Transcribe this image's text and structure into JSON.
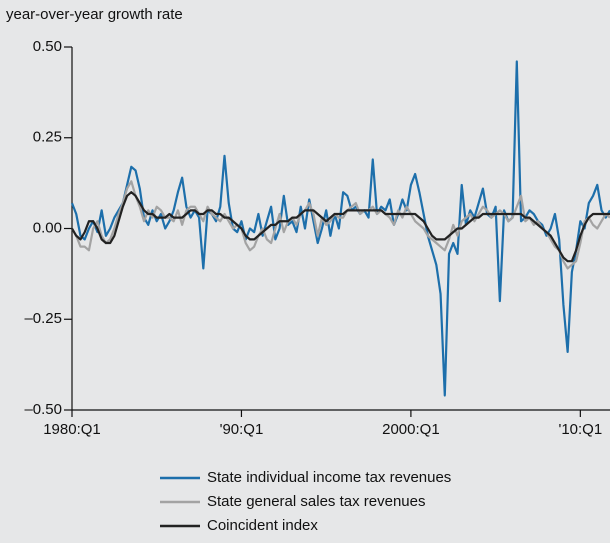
{
  "chart_data": {
    "type": "line",
    "y_axis_label": "year-over-year growth rate",
    "x": [
      1980,
      1980.25,
      1980.5,
      1980.75,
      1981,
      1981.25,
      1981.5,
      1981.75,
      1982,
      1982.25,
      1982.5,
      1982.75,
      1983,
      1983.25,
      1983.5,
      1983.75,
      1984,
      1984.25,
      1984.5,
      1984.75,
      1985,
      1985.25,
      1985.5,
      1985.75,
      1986,
      1986.25,
      1986.5,
      1986.75,
      1987,
      1987.25,
      1987.5,
      1987.75,
      1988,
      1988.25,
      1988.5,
      1988.75,
      1989,
      1989.25,
      1989.5,
      1989.75,
      1990,
      1990.25,
      1990.5,
      1990.75,
      1991,
      1991.25,
      1991.5,
      1991.75,
      1992,
      1992.25,
      1992.5,
      1992.75,
      1993,
      1993.25,
      1993.5,
      1993.75,
      1994,
      1994.25,
      1994.5,
      1994.75,
      1995,
      1995.25,
      1995.5,
      1995.75,
      1996,
      1996.25,
      1996.5,
      1996.75,
      1997,
      1997.25,
      1997.5,
      1997.75,
      1998,
      1998.25,
      1998.5,
      1998.75,
      1999,
      1999.25,
      1999.5,
      1999.75,
      2000,
      2000.25,
      2000.5,
      2000.75,
      2001,
      2001.25,
      2001.5,
      2001.75,
      2002,
      2002.25,
      2002.5,
      2002.75,
      2003,
      2003.25,
      2003.5,
      2003.75,
      2004,
      2004.25,
      2004.5,
      2004.75,
      2005,
      2005.25,
      2005.5,
      2005.75,
      2006,
      2006.25,
      2006.5,
      2006.75,
      2007,
      2007.25,
      2007.5,
      2007.75,
      2008,
      2008.25,
      2008.5,
      2008.75,
      2009,
      2009.25,
      2009.5,
      2009.75,
      2010,
      2010.25,
      2010.5,
      2010.75,
      2011,
      2011.25,
      2011.5,
      2011.75
    ],
    "xlim": [
      1980,
      2011.75
    ],
    "xticks": [
      {
        "value": 1980,
        "label": "1980:Q1"
      },
      {
        "value": 1990,
        "label": "'90:Q1"
      },
      {
        "value": 2000,
        "label": "2000:Q1"
      },
      {
        "value": 2010,
        "label": "'10:Q1"
      }
    ],
    "ylim": [
      -0.5,
      0.5
    ],
    "yticks": [
      {
        "value": 0.5,
        "label": "0.50"
      },
      0.25,
      {
        "value": 0,
        "label": "0.00"
      },
      {
        "value": -0.25,
        "label": "–0.25"
      },
      {
        "value": -0.5,
        "label": "–0.50"
      }
    ],
    "series": [
      {
        "name": "State individual income tax revenues",
        "color": "#1d6fab",
        "values": [
          0.07,
          0.04,
          -0.02,
          -0.03,
          0.0,
          0.02,
          -0.01,
          0.05,
          -0.02,
          0.0,
          0.03,
          0.05,
          0.07,
          0.12,
          0.17,
          0.16,
          0.11,
          0.03,
          0.01,
          0.05,
          0.02,
          0.04,
          0.0,
          0.02,
          0.05,
          0.1,
          0.14,
          0.06,
          0.03,
          0.05,
          0.03,
          -0.11,
          0.05,
          0.04,
          0.02,
          0.06,
          0.2,
          0.07,
          0.0,
          -0.01,
          0.02,
          -0.03,
          0.0,
          -0.01,
          0.04,
          -0.02,
          0.02,
          0.06,
          -0.03,
          0.0,
          0.09,
          0.01,
          0.02,
          -0.01,
          0.06,
          0.0,
          0.08,
          0.02,
          -0.04,
          0.0,
          0.05,
          -0.02,
          0.04,
          0.0,
          0.1,
          0.09,
          0.05,
          0.06,
          0.04,
          0.05,
          0.03,
          0.19,
          0.04,
          0.06,
          0.05,
          0.08,
          0.01,
          0.04,
          0.08,
          0.05,
          0.12,
          0.15,
          0.1,
          0.04,
          -0.02,
          -0.06,
          -0.1,
          -0.18,
          -0.46,
          -0.07,
          -0.04,
          -0.07,
          0.12,
          0.01,
          0.05,
          0.03,
          0.07,
          0.11,
          0.04,
          0.03,
          0.06,
          -0.2,
          0.05,
          0.02,
          0.03,
          0.46,
          0.02,
          0.03,
          0.05,
          0.04,
          0.02,
          0.01,
          -0.02,
          0.0,
          0.04,
          -0.03,
          -0.21,
          -0.34,
          -0.12,
          -0.06,
          0.02,
          0.0,
          0.07,
          0.09,
          0.12,
          0.05,
          0.03,
          0.05
        ]
      },
      {
        "name": "State general sales tax revenues",
        "color": "#a3a3a3",
        "values": [
          0.0,
          -0.02,
          -0.05,
          -0.05,
          -0.06,
          0.0,
          0.02,
          -0.02,
          -0.04,
          -0.03,
          0.0,
          0.04,
          0.07,
          0.11,
          0.13,
          0.09,
          0.06,
          0.02,
          0.05,
          0.03,
          0.06,
          0.05,
          0.03,
          0.03,
          0.02,
          0.05,
          0.01,
          0.05,
          0.06,
          0.06,
          0.04,
          0.02,
          0.06,
          0.04,
          0.03,
          0.02,
          0.04,
          0.02,
          0.0,
          0.01,
          0.0,
          -0.04,
          -0.06,
          -0.05,
          -0.02,
          0.0,
          -0.03,
          -0.04,
          0.0,
          0.04,
          -0.01,
          0.02,
          0.03,
          0.01,
          0.04,
          0.05,
          0.07,
          0.04,
          -0.02,
          0.03,
          0.01,
          0.02,
          0.04,
          0.03,
          0.03,
          0.05,
          0.06,
          0.07,
          0.04,
          0.05,
          0.05,
          0.06,
          0.04,
          0.05,
          0.04,
          0.03,
          0.01,
          0.05,
          0.03,
          0.06,
          0.04,
          0.02,
          0.01,
          0.0,
          -0.02,
          -0.03,
          -0.04,
          -0.05,
          -0.06,
          -0.03,
          0.01,
          -0.02,
          0.02,
          0.03,
          0.04,
          0.02,
          0.04,
          0.06,
          0.05,
          0.03,
          0.04,
          0.05,
          0.04,
          0.02,
          0.03,
          0.06,
          0.09,
          0.02,
          0.03,
          0.01,
          0.02,
          0.0,
          -0.01,
          -0.03,
          -0.05,
          -0.06,
          -0.09,
          -0.11,
          -0.1,
          -0.09,
          -0.04,
          0.02,
          0.03,
          0.01,
          0.0,
          0.02,
          0.04,
          0.03
        ]
      },
      {
        "name": "Coincident index",
        "color": "#222222",
        "values": [
          0.0,
          -0.02,
          -0.03,
          -0.01,
          0.02,
          0.02,
          0.0,
          -0.03,
          -0.04,
          -0.04,
          -0.02,
          0.02,
          0.06,
          0.09,
          0.1,
          0.09,
          0.07,
          0.05,
          0.04,
          0.04,
          0.03,
          0.03,
          0.03,
          0.04,
          0.03,
          0.03,
          0.03,
          0.04,
          0.05,
          0.05,
          0.04,
          0.04,
          0.05,
          0.05,
          0.04,
          0.04,
          0.03,
          0.03,
          0.02,
          0.01,
          0.0,
          -0.02,
          -0.03,
          -0.03,
          -0.02,
          -0.01,
          0.0,
          0.01,
          0.01,
          0.02,
          0.02,
          0.02,
          0.03,
          0.03,
          0.04,
          0.05,
          0.05,
          0.05,
          0.04,
          0.03,
          0.02,
          0.03,
          0.04,
          0.04,
          0.04,
          0.05,
          0.05,
          0.05,
          0.05,
          0.05,
          0.05,
          0.05,
          0.05,
          0.05,
          0.04,
          0.04,
          0.04,
          0.04,
          0.04,
          0.04,
          0.04,
          0.04,
          0.03,
          0.02,
          0.0,
          -0.02,
          -0.03,
          -0.03,
          -0.03,
          -0.02,
          -0.01,
          0.0,
          0.0,
          0.01,
          0.02,
          0.03,
          0.03,
          0.04,
          0.04,
          0.04,
          0.04,
          0.04,
          0.04,
          0.04,
          0.04,
          0.04,
          0.04,
          0.03,
          0.03,
          0.02,
          0.01,
          0.0,
          -0.01,
          -0.02,
          -0.04,
          -0.06,
          -0.08,
          -0.09,
          -0.09,
          -0.06,
          -0.02,
          0.01,
          0.03,
          0.04,
          0.04,
          0.04,
          0.04,
          0.04
        ]
      }
    ]
  }
}
